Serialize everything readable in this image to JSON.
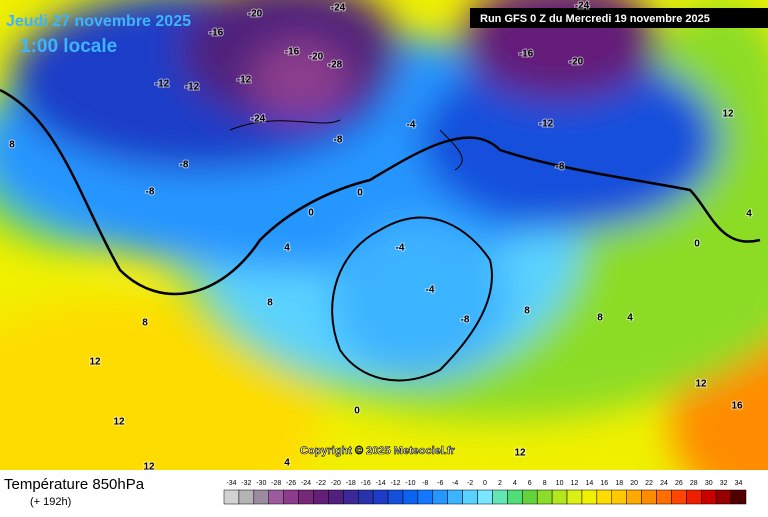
{
  "header": {
    "date": "Jeudi 27 novembre 2025",
    "time": "1:00 locale",
    "run": "Run GFS 0 Z du Mercredi 19 novembre 2025"
  },
  "copyright": "Copyright © 2025 Meteociel.fr",
  "legend": {
    "title": "Température 850hPa",
    "subtitle": "(+ 192h)",
    "values": [
      -34,
      -32,
      -30,
      -28,
      -26,
      -24,
      -22,
      -20,
      -18,
      -16,
      -14,
      -12,
      -10,
      -8,
      -6,
      -4,
      -2,
      0,
      2,
      4,
      6,
      8,
      10,
      12,
      14,
      16,
      18,
      20,
      22,
      24,
      26,
      28,
      30,
      32,
      34
    ],
    "colors": [
      "#d2d2d2",
      "#b4b4b4",
      "#9b8aa0",
      "#9e5a9e",
      "#8c3c8c",
      "#782878",
      "#641e78",
      "#50207c",
      "#3c2896",
      "#2832aa",
      "#1e3cc8",
      "#1450dc",
      "#0a64f0",
      "#1478ff",
      "#2896ff",
      "#3cb4ff",
      "#5ad2ff",
      "#78e6ff",
      "#64e6b4",
      "#50dc78",
      "#64d23c",
      "#8cdc28",
      "#b4e61e",
      "#dcf014",
      "#f0f000",
      "#ffdc00",
      "#ffc800",
      "#ffaa00",
      "#ff8c00",
      "#ff6e00",
      "#ff4600",
      "#f01e00",
      "#c80000",
      "#960000",
      "#500000"
    ]
  },
  "map_labels": [
    -20,
    -24,
    -16,
    -16,
    -20,
    -12,
    -12,
    -12,
    -28,
    -24,
    -8,
    -4,
    -8,
    -8,
    0,
    0,
    4,
    -4,
    -4,
    -8,
    8,
    8,
    12,
    12,
    12,
    4,
    0,
    -16,
    -20,
    -12,
    -8,
    -24,
    0,
    4,
    8,
    12,
    16,
    12,
    4,
    8,
    8,
    12
  ]
}
